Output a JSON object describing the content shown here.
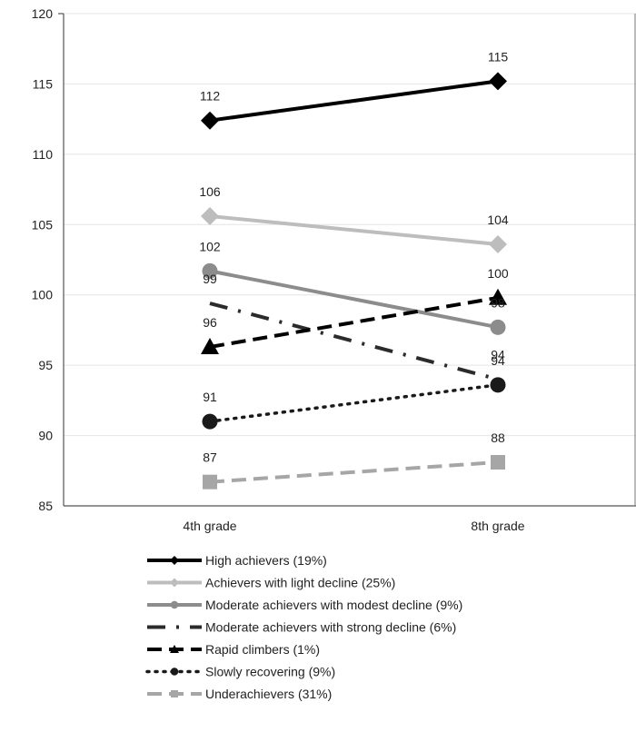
{
  "chart_data": {
    "type": "line",
    "title": "",
    "xlabel": "",
    "ylabel": "",
    "categories": [
      "4th grade",
      "8th grade"
    ],
    "ylim": [
      85,
      120
    ],
    "yticks": [
      85,
      90,
      95,
      100,
      105,
      110,
      115,
      120
    ],
    "grid": true,
    "legend_position": "bottom",
    "series": [
      {
        "name": "High achievers (19%)",
        "values": [
          112.4,
          115.2
        ],
        "labels": [
          "112",
          "115"
        ],
        "color": "#000000",
        "dash": "solid",
        "marker": "diamond",
        "width": "thick"
      },
      {
        "name": "Achievers with light decline (25%)",
        "values": [
          105.6,
          103.6
        ],
        "labels": [
          "106",
          "104"
        ],
        "color": "#bdbdbd",
        "dash": "solid",
        "marker": "diamond",
        "width": "thick"
      },
      {
        "name": "Moderate achievers with modest decline (9%)",
        "values": [
          101.7,
          97.7
        ],
        "labels": [
          "102",
          "98"
        ],
        "color": "#8c8c8c",
        "dash": "solid",
        "marker": "circle",
        "width": "thick"
      },
      {
        "name": "Moderate achievers with strong decline (6%)",
        "values": [
          99.4,
          94.0
        ],
        "labels": [
          "99",
          "94"
        ],
        "color": "#2b2b2b",
        "dash": "dash-dot",
        "marker": "none",
        "width": "thick"
      },
      {
        "name": "Rapid climbers (1%)",
        "values": [
          96.3,
          99.8
        ],
        "labels": [
          "96",
          "100"
        ],
        "color": "#000000",
        "dash": "dash",
        "marker": "triangle",
        "width": "thick"
      },
      {
        "name": "Slowly recovering (9%)",
        "values": [
          91.0,
          93.6
        ],
        "labels": [
          "91",
          "94"
        ],
        "color": "#1a1a1a",
        "dash": "dot",
        "marker": "circle",
        "width": "medium"
      },
      {
        "name": "Underachievers (31%)",
        "values": [
          86.7,
          88.1
        ],
        "labels": [
          "87",
          "88"
        ],
        "color": "#a6a6a6",
        "dash": "dash",
        "marker": "square",
        "width": "thick"
      }
    ]
  }
}
